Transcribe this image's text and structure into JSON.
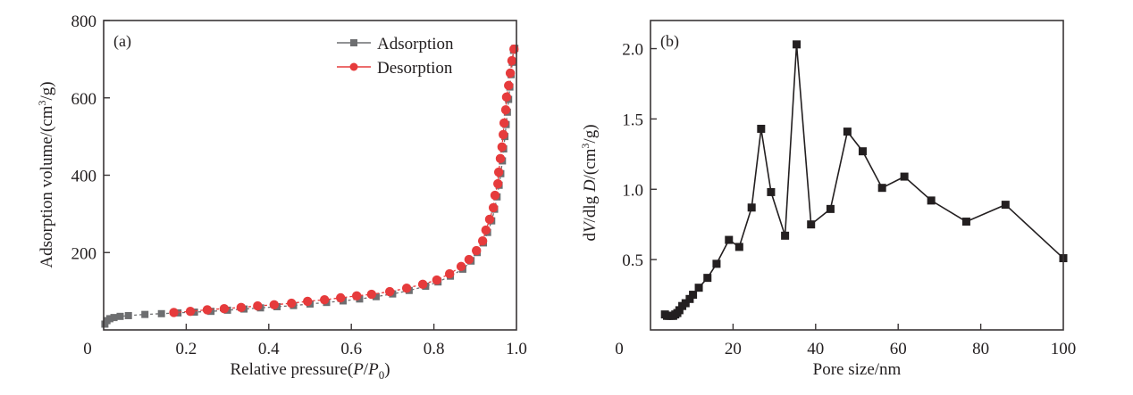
{
  "chart_data": [
    {
      "type": "scatter",
      "panel_label": "(a)",
      "xlabel_main": "Relative pressure(",
      "xlabel_italic_p": "P",
      "xlabel_slash": "/",
      "xlabel_italic_p0": "P",
      "xlabel_sub": "0",
      "xlabel_close": ")",
      "ylabel": "Adsorption volume/(cm",
      "ylabel_sup": "3",
      "ylabel_tail": "/g)",
      "xlim": [
        0,
        1.0
      ],
      "ylim": [
        0,
        800
      ],
      "xticks": [
        0.2,
        0.4,
        0.6,
        0.8,
        1.0
      ],
      "xtick_labels": [
        "0.2",
        "0.4",
        "0.6",
        "0.8",
        "1.0"
      ],
      "yticks": [
        200,
        400,
        600,
        800
      ],
      "ytick_labels": [
        "200",
        "400",
        "600",
        "800"
      ],
      "origin_label": "0",
      "grid": false,
      "legend_position": "top-right",
      "series": [
        {
          "name": "Adsorption",
          "color": "#6d6e70",
          "marker": "square",
          "line": "dashed",
          "x": [
            0.003,
            0.008,
            0.015,
            0.025,
            0.04,
            0.06,
            0.1,
            0.14,
            0.18,
            0.22,
            0.26,
            0.3,
            0.34,
            0.38,
            0.42,
            0.46,
            0.5,
            0.54,
            0.58,
            0.62,
            0.66,
            0.7,
            0.74,
            0.78,
            0.81,
            0.84,
            0.87,
            0.89,
            0.905,
            0.92,
            0.93,
            0.94,
            0.947,
            0.953,
            0.958,
            0.962,
            0.966,
            0.969,
            0.972,
            0.975,
            0.978,
            0.981,
            0.984,
            0.987,
            0.99,
            0.993,
            0.996
          ],
          "y": [
            15,
            24,
            29,
            32,
            35,
            37,
            40,
            42,
            44,
            46,
            48,
            51,
            54,
            57,
            60,
            63,
            67,
            71,
            75,
            80,
            86,
            93,
            102,
            113,
            124,
            139,
            157,
            178,
            200,
            225,
            252,
            282,
            312,
            344,
            374,
            404,
            437,
            468,
            500,
            531,
            563,
            596,
            628,
            660,
            692,
            723,
            728
          ]
        },
        {
          "name": "Desorption",
          "color": "#e63b3c",
          "marker": "circle",
          "line": "dashed",
          "x": [
            0.994,
            0.989,
            0.985,
            0.981,
            0.976,
            0.974,
            0.97,
            0.968,
            0.965,
            0.961,
            0.957,
            0.955,
            0.948,
            0.944,
            0.935,
            0.926,
            0.918,
            0.903,
            0.885,
            0.866,
            0.838,
            0.807,
            0.773,
            0.734,
            0.693,
            0.649,
            0.613,
            0.574,
            0.535,
            0.494,
            0.455,
            0.413,
            0.373,
            0.333,
            0.292,
            0.251,
            0.21,
            0.17
          ],
          "y": [
            726,
            696,
            664,
            632,
            602,
            569,
            535,
            505,
            473,
            443,
            408,
            378,
            348,
            316,
            286,
            258,
            230,
            205,
            182,
            164,
            145,
            129,
            118,
            108,
            99,
            92,
            88,
            83,
            78,
            74,
            69,
            65,
            62,
            58,
            55,
            52,
            48,
            45
          ]
        }
      ]
    },
    {
      "type": "line",
      "panel_label": "(b)",
      "xlabel": "Pore size/nm",
      "ylabel_d": "d",
      "ylabel_v": "V",
      "ylabel_mid": "/dlg ",
      "ylabel_D": "D",
      "ylabel_unit": "/(cm",
      "ylabel_sup": "3",
      "ylabel_tail": "/g)",
      "xlim": [
        0,
        100
      ],
      "ylim": [
        0,
        2.2
      ],
      "xticks": [
        20,
        40,
        60,
        80,
        100
      ],
      "xtick_labels": [
        "20",
        "40",
        "60",
        "80",
        "100"
      ],
      "yticks": [
        0.5,
        1.0,
        1.5,
        2.0
      ],
      "ytick_labels": [
        "0.5",
        "1.0",
        "1.5",
        "2.0"
      ],
      "origin_label": "0",
      "grid": false,
      "series": [
        {
          "name": "dV/dlgD",
          "color": "#231f20",
          "marker": "square",
          "line": "solid",
          "x": [
            3.5,
            4.0,
            4.5,
            5.0,
            5.5,
            6.0,
            6.5,
            7.0,
            7.7,
            8.5,
            9.5,
            10.3,
            11.7,
            13.8,
            16.0,
            19.0,
            21.5,
            24.5,
            26.8,
            29.2,
            32.6,
            35.4,
            38.9,
            43.6,
            47.7,
            51.4,
            56.1,
            61.5,
            68.0,
            76.5,
            86.0,
            100.0
          ],
          "y": [
            0.11,
            0.1,
            0.1,
            0.1,
            0.1,
            0.11,
            0.12,
            0.14,
            0.17,
            0.19,
            0.22,
            0.25,
            0.3,
            0.37,
            0.47,
            0.64,
            0.59,
            0.87,
            1.43,
            0.98,
            0.67,
            2.03,
            0.75,
            0.86,
            1.41,
            1.27,
            1.01,
            1.09,
            0.92,
            0.77,
            0.89,
            0.51
          ]
        }
      ]
    }
  ]
}
